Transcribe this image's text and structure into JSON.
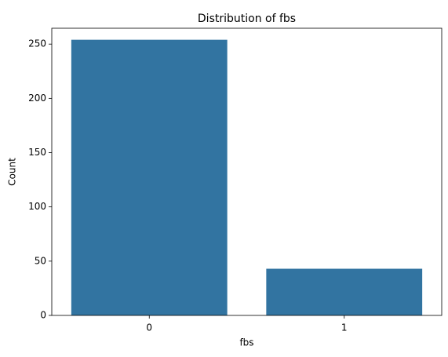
{
  "chart_data": {
    "type": "bar",
    "title": "Distribution of fbs",
    "x_label": "fbs",
    "y_label": "Count",
    "categories": [
      "0",
      "1"
    ],
    "values": [
      254,
      43
    ],
    "color": "#3274a1",
    "ylim": [
      0,
      264.6
    ],
    "yticks": [
      0,
      50,
      100,
      150,
      200,
      250
    ],
    "grid": false
  }
}
